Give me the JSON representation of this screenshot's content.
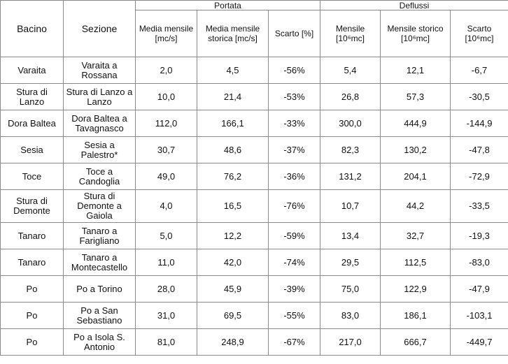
{
  "table": {
    "header": {
      "bacino": "Bacino",
      "sezione": "Sezione",
      "portata": "Portata",
      "deflussi": "Deflussi",
      "columns": [
        "Media mensile [mc/s]",
        "Media mensile storica [mc/s]",
        "Scarto [%]",
        "Mensile [10⁶mc]",
        "Mensile storico [10⁶mc]",
        "Scarto [10⁶mc]"
      ]
    },
    "rows": [
      [
        "Varaita",
        "Varaita a Rossana",
        "2,0",
        "4,5",
        "-56%",
        "5,4",
        "12,1",
        "-6,7"
      ],
      [
        "Stura di Lanzo",
        "Stura di Lanzo a Lanzo",
        "10,0",
        "21,4",
        "-53%",
        "26,8",
        "57,3",
        "-30,5"
      ],
      [
        "Dora Baltea",
        "Dora Baltea a Tavagnasco",
        "112,0",
        "166,1",
        "-33%",
        "300,0",
        "444,9",
        "-144,9"
      ],
      [
        "Sesia",
        "Sesia a Palestro*",
        "30,7",
        "48,6",
        "-37%",
        "82,3",
        "130,2",
        "-47,8"
      ],
      [
        "Toce",
        "Toce a Candoglia",
        "49,0",
        "76,2",
        "-36%",
        "131,2",
        "204,1",
        "-72,9"
      ],
      [
        "Stura di Demonte",
        "Stura di Demonte a Gaiola",
        "4,0",
        "16,5",
        "-76%",
        "10,7",
        "44,2",
        "-33,5"
      ],
      [
        "Tanaro",
        "Tanaro a Farigliano",
        "5,0",
        "12,2",
        "-59%",
        "13,4",
        "32,7",
        "-19,3"
      ],
      [
        "Tanaro",
        "Tanaro a Montecastello",
        "11,0",
        "42,0",
        "-74%",
        "29,5",
        "112,5",
        "-83,0"
      ],
      [
        "Po",
        "Po a Torino",
        "28,0",
        "45,9",
        "-39%",
        "75,0",
        "122,9",
        "-47,9"
      ],
      [
        "Po",
        "Po a San Sebastiano",
        "31,0",
        "69,5",
        "-55%",
        "83,0",
        "186,1",
        "-103,1"
      ],
      [
        "Po",
        "Po a Isola S. Antonio",
        "81,0",
        "248,9",
        "-67%",
        "217,0",
        "666,7",
        "-449,7"
      ]
    ]
  }
}
